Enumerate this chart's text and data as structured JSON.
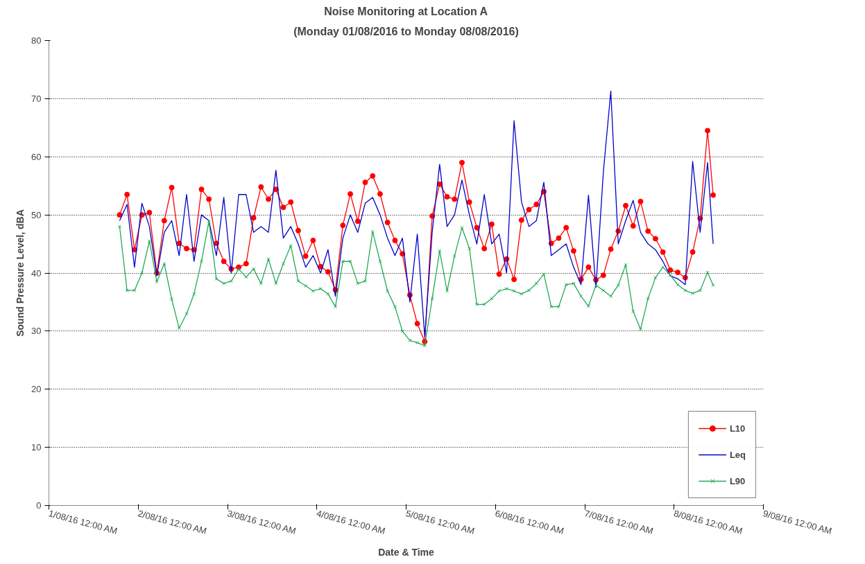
{
  "chart_data": {
    "type": "line",
    "title": "Noise Monitoring at Location A",
    "subtitle": "(Monday 01/08/2016 to Monday 08/08/2016)",
    "xlabel": "Date & Time",
    "ylabel": "Sound Pressure Level, dBA",
    "x": [
      "2016-08-01T19:00",
      "2016-08-01T21:00",
      "2016-08-01T23:00",
      "2016-08-02T01:00",
      "2016-08-02T03:00",
      "2016-08-02T05:00",
      "2016-08-02T07:00",
      "2016-08-02T09:00",
      "2016-08-02T11:00",
      "2016-08-02T13:00",
      "2016-08-02T15:00",
      "2016-08-02T17:00",
      "2016-08-02T19:00",
      "2016-08-02T21:00",
      "2016-08-02T23:00",
      "2016-08-03T01:00",
      "2016-08-03T03:00",
      "2016-08-03T05:00",
      "2016-08-03T07:00",
      "2016-08-03T09:00",
      "2016-08-03T11:00",
      "2016-08-03T13:00",
      "2016-08-03T15:00",
      "2016-08-03T17:00",
      "2016-08-03T19:00",
      "2016-08-03T21:00",
      "2016-08-03T23:00",
      "2016-08-04T01:00",
      "2016-08-04T03:00",
      "2016-08-04T05:00",
      "2016-08-04T07:00",
      "2016-08-04T09:00",
      "2016-08-04T11:00",
      "2016-08-04T13:00",
      "2016-08-04T15:00",
      "2016-08-04T17:00",
      "2016-08-04T19:00",
      "2016-08-04T21:00",
      "2016-08-04T23:00",
      "2016-08-05T01:00",
      "2016-08-05T03:00",
      "2016-08-05T05:00",
      "2016-08-05T07:00",
      "2016-08-05T09:00",
      "2016-08-05T11:00",
      "2016-08-05T13:00",
      "2016-08-05T15:00",
      "2016-08-05T17:00",
      "2016-08-05T19:00",
      "2016-08-05T21:00",
      "2016-08-05T23:00",
      "2016-08-06T01:00",
      "2016-08-06T03:00",
      "2016-08-06T05:00",
      "2016-08-06T07:00",
      "2016-08-06T09:00",
      "2016-08-06T11:00",
      "2016-08-06T13:00",
      "2016-08-06T15:00",
      "2016-08-06T17:00",
      "2016-08-06T19:00",
      "2016-08-06T21:00",
      "2016-08-06T23:00",
      "2016-08-07T01:00",
      "2016-08-07T03:00",
      "2016-08-07T05:00",
      "2016-08-07T07:00",
      "2016-08-07T09:00",
      "2016-08-07T11:00",
      "2016-08-07T13:00",
      "2016-08-07T15:00",
      "2016-08-07T17:00",
      "2016-08-07T19:00",
      "2016-08-07T21:00",
      "2016-08-07T23:00",
      "2016-08-08T01:00",
      "2016-08-08T03:00",
      "2016-08-08T05:00",
      "2016-08-08T07:00",
      "2016-08-08T09:00",
      "2016-08-08T10:30"
    ],
    "series": [
      {
        "name": "L10",
        "color": "#ff0000",
        "marker": "circle",
        "values": [
          50,
          53.5,
          44,
          50,
          50.4,
          40,
          49,
          54.7,
          45.1,
          44.2,
          44,
          54.4,
          52.7,
          45.1,
          42,
          40.7,
          41,
          41.6,
          49.5,
          54.8,
          52.7,
          54.4,
          51.3,
          52.2,
          47.3,
          42.9,
          45.6,
          41.1,
          40.2,
          37.1,
          48.2,
          53.6,
          48.9,
          55.6,
          56.7,
          53.6,
          48.7,
          45.6,
          43.3,
          36.2,
          31.3,
          28.2,
          49.8,
          55.3,
          53.1,
          52.7,
          59,
          52.2,
          47.8,
          44.2,
          48.4,
          39.8,
          42.4,
          38.9,
          49.1,
          50.9,
          51.8,
          54,
          45.1,
          46,
          47.8,
          43.8,
          38.9,
          41,
          38.8,
          39.6,
          44.1,
          47.2,
          51.6,
          48.1,
          52.3,
          47.2,
          45.9,
          43.6,
          40.5,
          40.1,
          39.2,
          43.6,
          49.4,
          64.5,
          53.4
        ]
      },
      {
        "name": "Leq",
        "color": "#0000cc",
        "marker": "none",
        "values": [
          49,
          51.8,
          41,
          52,
          48,
          39.5,
          47,
          49,
          43,
          53.5,
          42,
          50,
          49,
          43,
          53,
          40,
          53.5,
          53.5,
          47,
          48,
          47,
          57.7,
          46,
          48,
          45,
          41,
          43,
          40,
          44,
          36,
          46,
          50,
          47,
          52,
          53,
          50,
          46,
          43,
          46,
          35,
          46.7,
          29,
          47,
          58.7,
          48,
          50,
          56,
          50,
          45,
          53.5,
          45,
          46.7,
          40,
          66.2,
          52.2,
          48,
          49,
          55.6,
          43,
          44,
          45,
          41,
          38,
          53.4,
          37.5,
          57.4,
          71.3,
          45,
          49,
          52.5,
          47,
          45,
          44,
          42,
          39.5,
          39,
          38,
          59.2,
          47,
          59,
          45
        ]
      },
      {
        "name": "L90",
        "color": "#22aa55",
        "marker": "cross",
        "values": [
          48,
          37,
          37,
          40,
          45.5,
          38.5,
          41.6,
          35.5,
          30.5,
          33,
          36.4,
          42,
          48.9,
          39,
          38.2,
          38.6,
          40.7,
          39.3,
          40.7,
          38.2,
          42.4,
          38.2,
          41.6,
          44.7,
          38.6,
          37.8,
          36.9,
          37.3,
          36.4,
          34.2,
          42,
          42,
          38.2,
          38.6,
          47.1,
          42,
          36.9,
          34.2,
          30,
          28.4,
          28,
          27.5,
          35.6,
          43.8,
          36.9,
          42.9,
          47.8,
          44.2,
          34.6,
          34.6,
          35.6,
          36.9,
          37.3,
          36.9,
          36.4,
          37,
          38.2,
          39.8,
          34.2,
          34.2,
          38,
          38.2,
          36,
          34.3,
          37.9,
          37,
          36,
          37.9,
          41.4,
          33.4,
          30.3,
          35.6,
          39.2,
          41,
          39.6,
          38,
          37,
          36.5,
          37,
          40.1,
          37.9
        ]
      }
    ],
    "xlim": [
      "2016-08-01",
      "2016-08-09"
    ],
    "xticks": [
      {
        "value": "2016-08-01",
        "label": "1/08/16 12:00 AM"
      },
      {
        "value": "2016-08-02",
        "label": "2/08/16 12:00 AM"
      },
      {
        "value": "2016-08-03",
        "label": "3/08/16 12:00 AM"
      },
      {
        "value": "2016-08-04",
        "label": "4/08/16 12:00 AM"
      },
      {
        "value": "2016-08-05",
        "label": "5/08/16 12:00 AM"
      },
      {
        "value": "2016-08-06",
        "label": "6/08/16 12:00 AM"
      },
      {
        "value": "2016-08-07",
        "label": "7/08/16 12:00 AM"
      },
      {
        "value": "2016-08-08",
        "label": "8/08/16 12:00 AM"
      },
      {
        "value": "2016-08-09",
        "label": "9/08/16 12:00 AM"
      }
    ],
    "ylim": [
      0,
      80
    ],
    "yticks": [
      0,
      10,
      20,
      30,
      40,
      50,
      60,
      70,
      80
    ],
    "grid": "y",
    "legend": "bottom right"
  }
}
